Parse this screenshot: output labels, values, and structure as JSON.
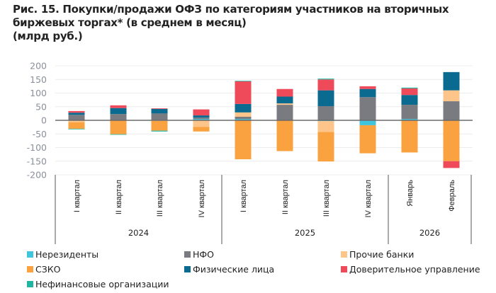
{
  "title_lines": [
    "Рис. 15. Покупки/продажи ОФЗ по категориям участников на вторичных",
    "биржевых торгах* (в среднем в месяц)",
    "(млрд руб.)"
  ],
  "chart_data": {
    "type": "bar",
    "stacked": true,
    "title": "Рис. 15. Покупки/продажи ОФЗ по категориям участников на вторичных биржевых торгах* (в среднем в месяц)",
    "ylabel": "млрд руб.",
    "xlabel": "",
    "ylim": [
      -200,
      200
    ],
    "yticks": [
      200,
      150,
      100,
      50,
      0,
      -50,
      -100,
      -150,
      -200
    ],
    "grid": true,
    "legend_position": "bottom",
    "categories": [
      "I квартал",
      "II квартал",
      "III квартал",
      "IV квартал",
      "I квартал",
      "II квартал",
      "III квартал",
      "IV квартал",
      "Январь",
      "Февраль"
    ],
    "groups": [
      {
        "label": "2024",
        "count": 4
      },
      {
        "label": "2025",
        "count": 4
      },
      {
        "label": "2026",
        "count": 2
      }
    ],
    "series": [
      {
        "name": "Нерезиденты",
        "color": "#3fc5dc",
        "values": [
          0,
          0,
          0,
          5,
          5,
          0,
          -3,
          -18,
          5,
          0
        ]
      },
      {
        "name": "НФО",
        "color": "#7a7b80",
        "values": [
          20,
          23,
          25,
          5,
          8,
          57,
          52,
          85,
          52,
          70
        ]
      },
      {
        "name": "Прочие банки",
        "color": "#fdc58a",
        "values": [
          -7,
          0,
          -2,
          -24,
          16,
          5,
          -40,
          0,
          0,
          40
        ]
      },
      {
        "name": "СЗКО",
        "color": "#f9a23f",
        "values": [
          -24,
          -51,
          -36,
          -17,
          -143,
          -113,
          -108,
          -103,
          -118,
          -150
        ]
      },
      {
        "name": "Физические лица",
        "color": "#0a6a8f",
        "values": [
          8,
          22,
          17,
          8,
          31,
          25,
          58,
          30,
          36,
          67
        ]
      },
      {
        "name": "Доверительное управление",
        "color": "#ee4a5a",
        "values": [
          6,
          10,
          2,
          22,
          83,
          28,
          40,
          10,
          24,
          -25
        ]
      },
      {
        "name": "Нефинансовые организации",
        "color": "#1fb5a0",
        "values": [
          -2,
          -2,
          -3,
          0,
          2,
          0,
          3,
          0,
          3,
          0
        ]
      }
    ]
  },
  "legend": [
    {
      "label": "Нерезиденты",
      "color": "#3fc5dc"
    },
    {
      "label": "НФО",
      "color": "#7a7b80"
    },
    {
      "label": "Прочие банки",
      "color": "#fdc58a"
    },
    {
      "label": "СЗКО",
      "color": "#f9a23f"
    },
    {
      "label": "Физические лица",
      "color": "#0a6a8f"
    },
    {
      "label": "Доверительное управление",
      "color": "#ee4a5a"
    },
    {
      "label": "Нефинансовые организации",
      "color": "#1fb5a0"
    }
  ]
}
